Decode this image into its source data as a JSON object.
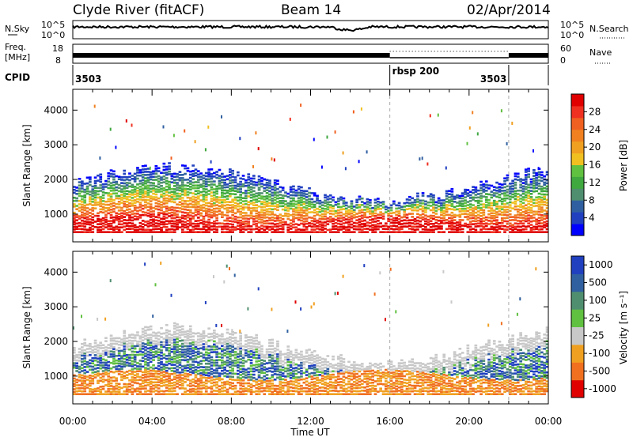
{
  "header": {
    "station": "Clyde River (fitACF)",
    "beam": "Beam 14",
    "date": "02/Apr/2014"
  },
  "strip_labels": {
    "nsky": "N.Sky",
    "nsky_ticks": [
      "10^5",
      "10^0"
    ],
    "nsearch_ticks": [
      "10^5",
      "10^0"
    ],
    "nsearch": "N.Search",
    "freq_line1": "Freq.",
    "freq_line2": "[MHz]",
    "freq_ticks": [
      "18",
      "8"
    ],
    "nave_ticks": [
      "60",
      "0"
    ],
    "nave": "Nave",
    "cpid": "CPID",
    "cpid_values": [
      {
        "label": "3503",
        "start": 0
      },
      {
        "label": "rbsp 200",
        "start": 16
      },
      {
        "label": "3503",
        "start": 22
      }
    ]
  },
  "chart_data": [
    {
      "type": "heatmap",
      "title": "",
      "xlabel": "Time UT",
      "ylabel": "Slant Range [km]",
      "xlim": [
        0,
        24
      ],
      "ylim": [
        200,
        4600
      ],
      "x_ticks": [
        "00:00",
        "04:00",
        "08:00",
        "12:00",
        "16:00",
        "20:00",
        "00:00"
      ],
      "y_ticks": [
        1000,
        2000,
        3000,
        4000
      ],
      "colorbar": {
        "label": "Power [dB]",
        "ticks": [
          "4",
          "8",
          "12",
          "16",
          "20",
          "24",
          "28"
        ],
        "colors": [
          "#0000ff",
          "#2040c0",
          "#2f5fa0",
          "#4f8f6f",
          "#3fa83f",
          "#60c040",
          "#f0c020",
          "#f0a020",
          "#f08020",
          "#f06020",
          "#f03020",
          "#e00000"
        ]
      },
      "mode_change_times": [
        16,
        22
      ]
    },
    {
      "type": "heatmap",
      "title": "",
      "xlabel": "Time UT",
      "ylabel": "Slant Range [km]",
      "xlim": [
        0,
        24
      ],
      "ylim": [
        200,
        4600
      ],
      "x_ticks": [
        "00:00",
        "04:00",
        "08:00",
        "12:00",
        "16:00",
        "20:00",
        "00:00"
      ],
      "y_ticks": [
        1000,
        2000,
        3000,
        4000
      ],
      "colorbar": {
        "label": "Velocity [m s⁻¹]",
        "ticks": [
          "1000",
          "500",
          "100",
          "25",
          "-25",
          "-100",
          "-500",
          "-1000"
        ],
        "colors": [
          "#2040c0",
          "#3060a0",
          "#4f8f6f",
          "#60c040",
          "#c8c8c8",
          "#f0a020",
          "#f07020",
          "#e00000"
        ]
      },
      "mode_change_times": [
        16,
        22
      ]
    }
  ],
  "colors": {
    "power_high": "#e00000",
    "power_mid": "#f08020",
    "power_low": "#0000ff",
    "velocity_ground": "#c8c8c8",
    "velocity_negative": "#f07020"
  }
}
